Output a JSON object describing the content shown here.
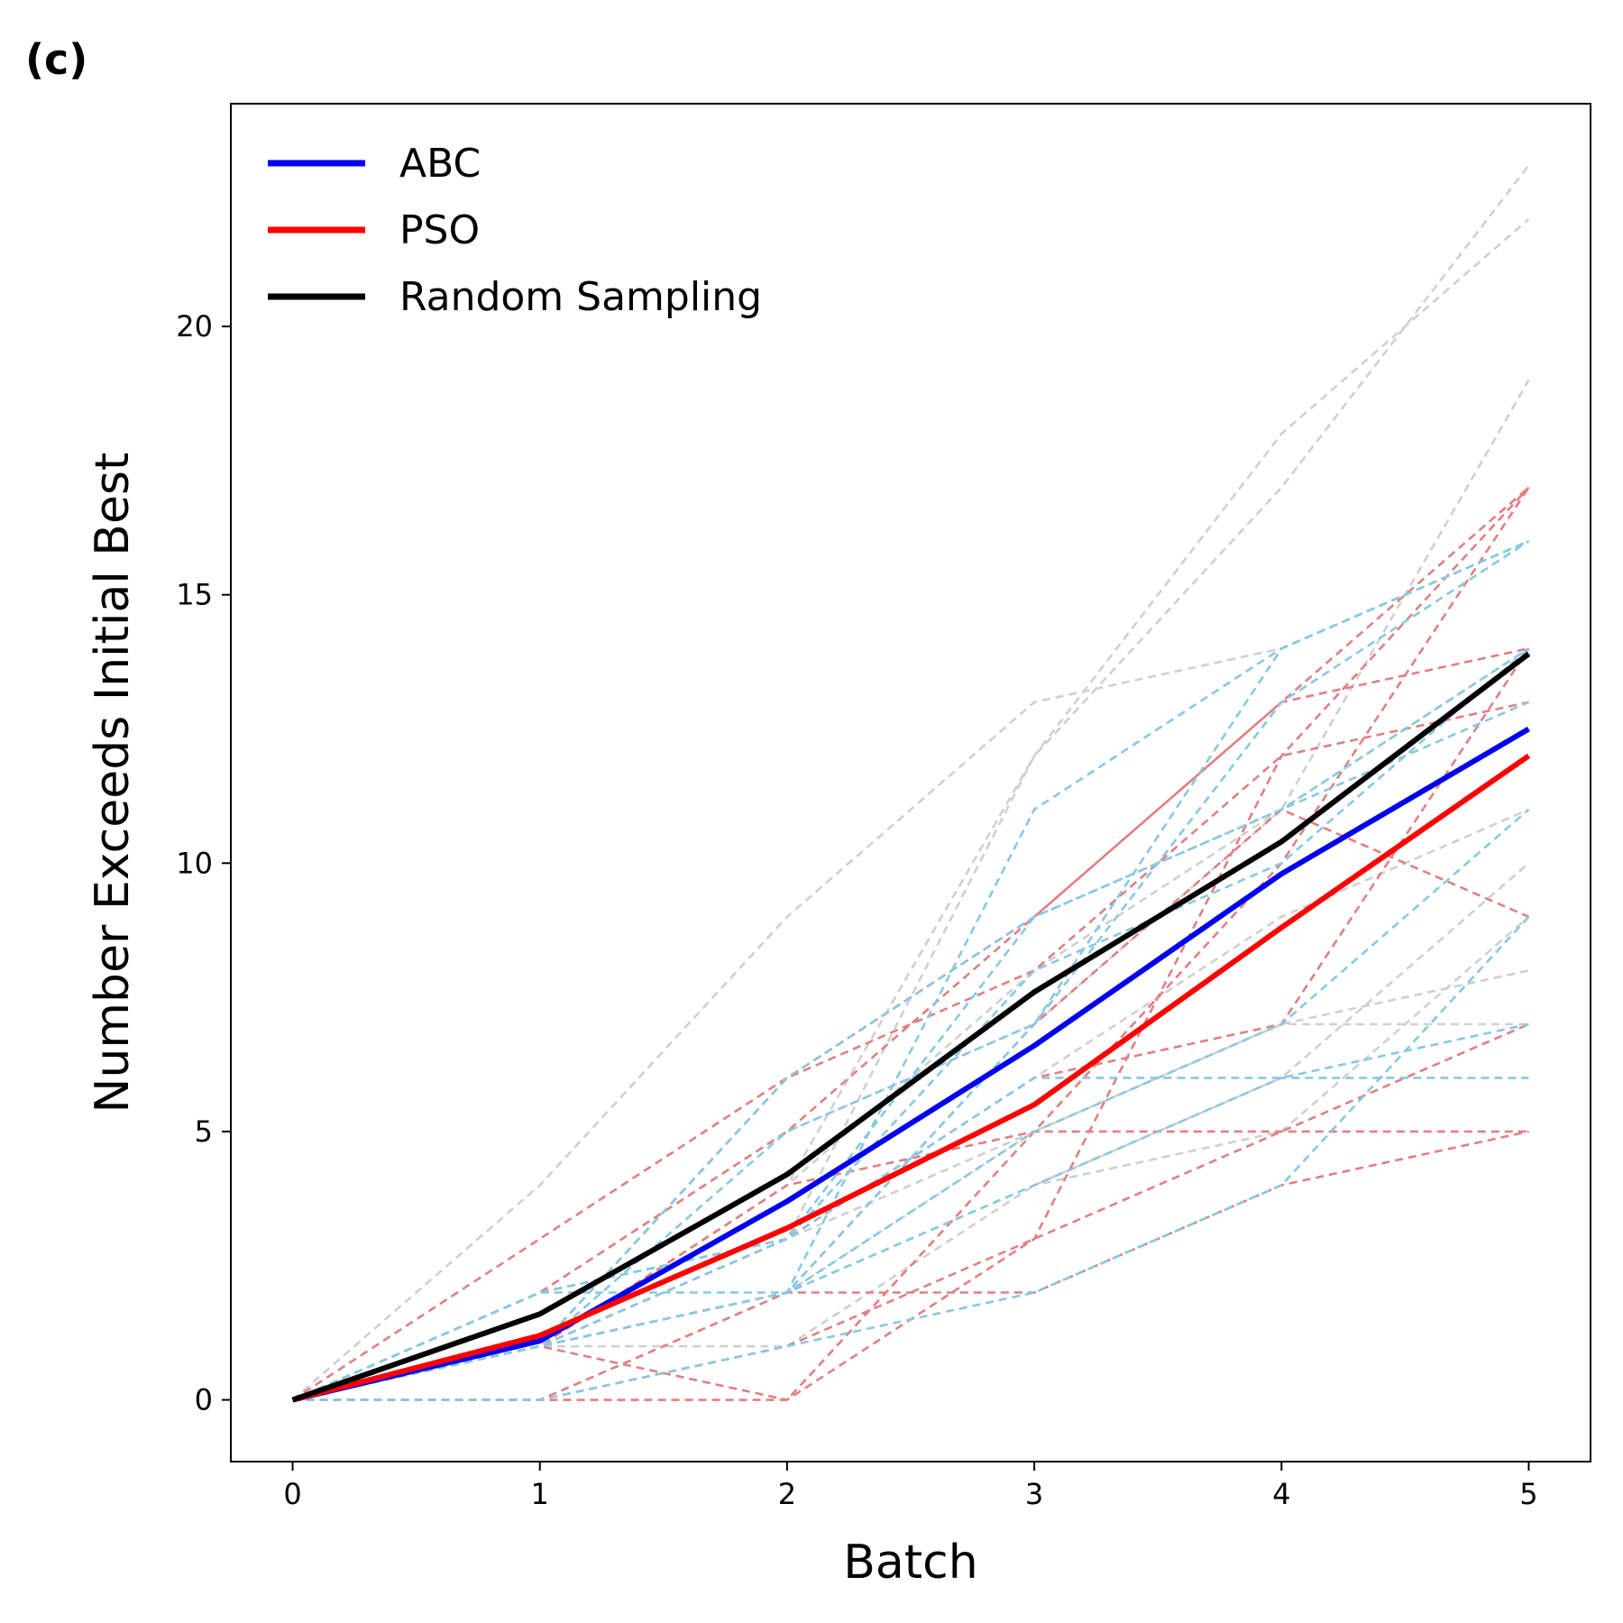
{
  "panel_label": "(c)",
  "chart_data": {
    "type": "line",
    "xlabel": "Batch",
    "ylabel": "Number Exceeds Initial Best",
    "xlim": [
      -0.25,
      5.25
    ],
    "ylim": [
      -1.15,
      24.15
    ],
    "x_ticks": [
      "0",
      "1",
      "2",
      "3",
      "4",
      "5"
    ],
    "y_ticks": [
      "0",
      "5",
      "10",
      "15",
      "20"
    ],
    "grid": false,
    "legend_position": "upper-left",
    "x": [
      0,
      1,
      2,
      3,
      4,
      5
    ],
    "series": [
      {
        "name": "ABC",
        "color": "#0000ee",
        "values": [
          0,
          1.1,
          3.7,
          6.6,
          9.8,
          12.5
        ]
      },
      {
        "name": "PSO",
        "color": "#ff0000",
        "values": [
          0,
          1.2,
          3.2,
          5.5,
          8.8,
          12.0
        ]
      },
      {
        "name": "Random Sampling",
        "color": "#000000",
        "values": [
          0,
          1.6,
          4.2,
          7.6,
          10.4,
          13.9
        ]
      }
    ],
    "individual_runs": {
      "ABC_color": "#87c9e3",
      "PSO_color": "#e37f82",
      "Random_color": "#d0d0d0",
      "ABC": [
        [
          0,
          2,
          2,
          11,
          14,
          16
        ],
        [
          0,
          1,
          5,
          7,
          14,
          16
        ],
        [
          0,
          1,
          2,
          5,
          7,
          11
        ],
        [
          0,
          1,
          6,
          9,
          11,
          14
        ],
        [
          0,
          2,
          3,
          8,
          10,
          14
        ],
        [
          0,
          1,
          2,
          4,
          6,
          6
        ],
        [
          0,
          1,
          3,
          6,
          6,
          7
        ],
        [
          0,
          0,
          1,
          2,
          4,
          9
        ],
        [
          0,
          1,
          2,
          7,
          13,
          16
        ],
        [
          0,
          2,
          3,
          9,
          11,
          13
        ]
      ],
      "PSO": [
        [
          0,
          3,
          6,
          9,
          13,
          17
        ],
        [
          0,
          1,
          0,
          3,
          12,
          17
        ],
        [
          0,
          0,
          0,
          5,
          10,
          17
        ],
        [
          0,
          1,
          3,
          6,
          7,
          14
        ],
        [
          0,
          2,
          5,
          9,
          13,
          14
        ],
        [
          0,
          1,
          4,
          5,
          5,
          5
        ],
        [
          0,
          0,
          2,
          2,
          4,
          5
        ],
        [
          0,
          1,
          6,
          8,
          12,
          13
        ],
        [
          0,
          1,
          2,
          7,
          11,
          9
        ],
        [
          0,
          0,
          1,
          3,
          5,
          7
        ]
      ],
      "Random": [
        [
          0,
          4,
          9,
          13,
          14,
          16
        ],
        [
          0,
          2,
          3,
          12,
          17,
          23
        ],
        [
          0,
          1,
          4,
          12,
          18,
          22
        ],
        [
          0,
          2,
          5,
          7,
          11,
          19
        ],
        [
          0,
          1,
          4,
          8,
          11,
          14
        ],
        [
          0,
          2,
          3,
          5,
          7,
          7
        ],
        [
          0,
          1,
          1,
          4,
          6,
          10
        ],
        [
          0,
          0,
          2,
          5,
          7,
          8
        ],
        [
          0,
          1,
          3,
          6,
          9,
          11
        ],
        [
          0,
          1,
          2,
          4,
          5,
          9
        ]
      ]
    }
  }
}
